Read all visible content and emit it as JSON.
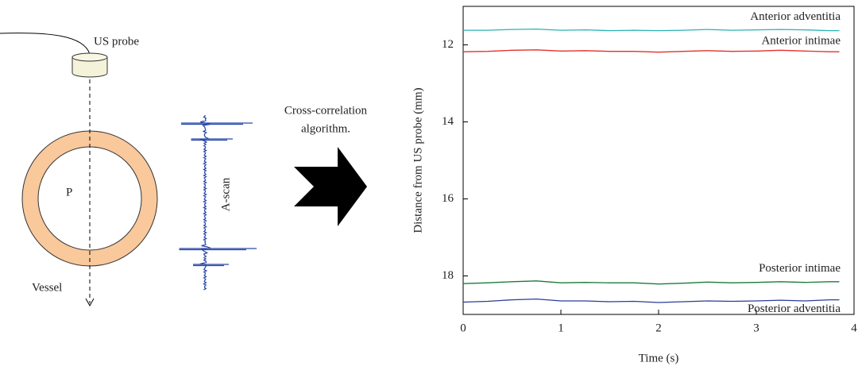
{
  "diagram": {
    "probe_label": "US probe",
    "lumen_label": "P",
    "vessel_label": "Vessel",
    "ascan_label": "A-scan",
    "arrow_label": [
      "Cross-correlation",
      "algorithm."
    ]
  },
  "chart_data": {
    "type": "line",
    "xlabel": "Time (s)",
    "ylabel": "Distance from US probe (mm)",
    "x": [
      0,
      0.25,
      0.5,
      0.75,
      1,
      1.25,
      1.5,
      1.75,
      2,
      2.25,
      2.5,
      2.75,
      3,
      3.25,
      3.5,
      3.75,
      3.85
    ],
    "series": [
      {
        "name": "Anterior adventitia",
        "color": "#2ab3b3",
        "values": [
          11.62,
          11.62,
          11.6,
          11.59,
          11.62,
          11.61,
          11.63,
          11.62,
          11.63,
          11.62,
          11.6,
          11.62,
          11.61,
          11.6,
          11.61,
          11.63,
          11.63
        ]
      },
      {
        "name": "Anterior intimae",
        "color": "#e2312b",
        "values": [
          12.18,
          12.17,
          12.14,
          12.13,
          12.16,
          12.15,
          12.17,
          12.17,
          12.19,
          12.17,
          12.15,
          12.17,
          12.16,
          12.14,
          12.16,
          12.18,
          12.18
        ]
      },
      {
        "name": "Posterior intimae",
        "color": "#1b7b3b",
        "values": [
          18.2,
          18.18,
          18.15,
          18.13,
          18.18,
          18.17,
          18.18,
          18.18,
          18.21,
          18.19,
          18.16,
          18.18,
          18.17,
          18.15,
          18.17,
          18.15,
          18.15
        ]
      },
      {
        "name": "Posterior adventitia",
        "color": "#2b3c9c",
        "values": [
          18.68,
          18.66,
          18.62,
          18.6,
          18.65,
          18.65,
          18.67,
          18.66,
          18.69,
          18.67,
          18.65,
          18.66,
          18.65,
          18.63,
          18.65,
          18.62,
          18.62
        ]
      }
    ],
    "xlim": [
      0,
      4
    ],
    "xticks": [
      0,
      1,
      2,
      3,
      4
    ],
    "ylim": [
      11,
      19
    ],
    "yticks": [
      12,
      14,
      16,
      18
    ],
    "y_inverted": true
  }
}
